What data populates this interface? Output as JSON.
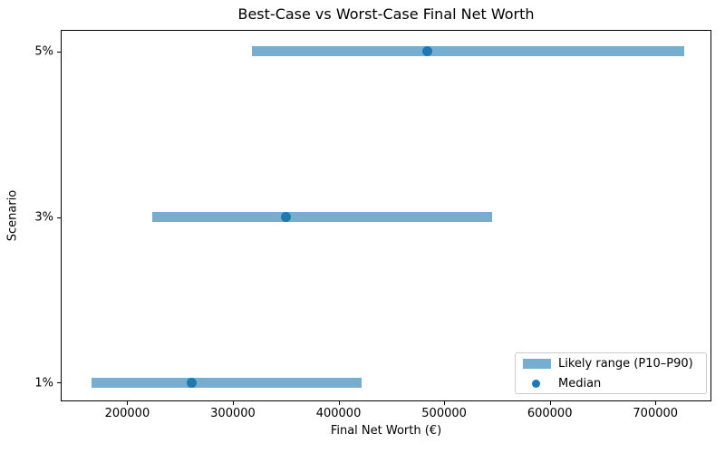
{
  "chart_data": {
    "type": "bar",
    "variant": "horizontal-range",
    "title": "Best-Case vs Worst-Case Final Net Worth",
    "xlabel": "Final Net Worth (€)",
    "ylabel": "Scenario",
    "categories": [
      "1%",
      "3%",
      "5%"
    ],
    "series": [
      {
        "name": "Likely range (P10–P90)",
        "type": "range",
        "low": [
          166000,
          224000,
          318000
        ],
        "high": [
          422000,
          545000,
          727000
        ]
      },
      {
        "name": "Median",
        "type": "point",
        "values": [
          261000,
          350000,
          484000
        ]
      }
    ],
    "xlim": [
      137000,
      753000
    ],
    "x_ticks": [
      200000,
      300000,
      400000,
      500000,
      600000,
      700000
    ],
    "grid": false,
    "legend": {
      "position": "lower right",
      "entries": [
        {
          "label": "Likely range (P10–P90)",
          "swatch": "bar",
          "color": "#78add2"
        },
        {
          "label": "Median",
          "swatch": "dot",
          "color": "#1f77b4"
        }
      ]
    },
    "colors": {
      "range_bar": "#78add2",
      "median_dot": "#1f77b4",
      "spine": "#000000",
      "text": "#000000"
    }
  }
}
